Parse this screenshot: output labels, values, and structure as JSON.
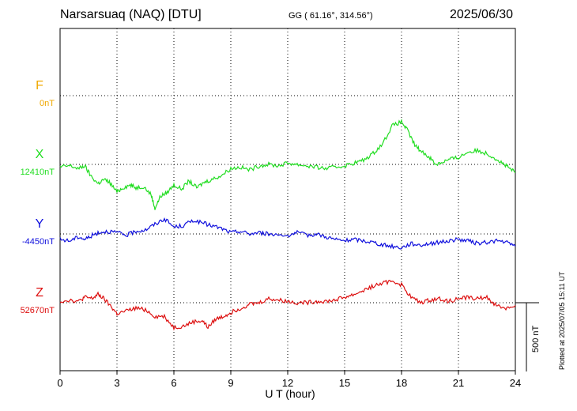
{
  "header": {
    "station": "Narsarsuaq (NAQ)  [DTU]",
    "coords": "GG ( 61.16°, 314.56°)",
    "date": "2025/06/30"
  },
  "side_note": "Plotted at 2025/07/05 15:11 UT",
  "scale_label": "500 nT",
  "chart_data": {
    "type": "line",
    "xlabel": "U T (hour)",
    "xlim": [
      0,
      24
    ],
    "x_ticks": [
      "0",
      "3",
      "6",
      "9",
      "12",
      "15",
      "18",
      "21",
      "24"
    ],
    "grid": true,
    "y_units": "nT",
    "scale_bar_nT": 500,
    "series": [
      {
        "name": "F",
        "baseline_label": "0nT",
        "color": "#f0a800",
        "points": []
      },
      {
        "name": "X",
        "baseline_label": "12410nT",
        "color": "#22dd22",
        "points": [
          [
            0,
            -20
          ],
          [
            0.5,
            -10
          ],
          [
            1,
            -30
          ],
          [
            1.3,
            -10
          ],
          [
            1.6,
            -80
          ],
          [
            2,
            -140
          ],
          [
            2.3,
            -110
          ],
          [
            2.6,
            -130
          ],
          [
            3,
            -200
          ],
          [
            3.3,
            -170
          ],
          [
            3.7,
            -150
          ],
          [
            4,
            -170
          ],
          [
            4.4,
            -160
          ],
          [
            4.8,
            -220
          ],
          [
            5,
            -320
          ],
          [
            5.3,
            -230
          ],
          [
            5.6,
            -210
          ],
          [
            6,
            -150
          ],
          [
            6.4,
            -180
          ],
          [
            6.8,
            -120
          ],
          [
            7.2,
            -170
          ],
          [
            7.6,
            -130
          ],
          [
            8,
            -110
          ],
          [
            8.5,
            -80
          ],
          [
            9,
            -30
          ],
          [
            9.5,
            -20
          ],
          [
            10,
            -40
          ],
          [
            10.5,
            -10
          ],
          [
            11,
            0
          ],
          [
            11.5,
            -10
          ],
          [
            12,
            10
          ],
          [
            12.5,
            0
          ],
          [
            13,
            -10
          ],
          [
            13.5,
            -20
          ],
          [
            14,
            -30
          ],
          [
            14.5,
            -20
          ],
          [
            15,
            -10
          ],
          [
            15.5,
            10
          ],
          [
            16,
            30
          ],
          [
            16.5,
            80
          ],
          [
            17,
            150
          ],
          [
            17.5,
            280
          ],
          [
            18,
            310
          ],
          [
            18.3,
            250
          ],
          [
            18.7,
            140
          ],
          [
            19,
            100
          ],
          [
            19.5,
            50
          ],
          [
            19.8,
            0
          ],
          [
            20.2,
            20
          ],
          [
            20.6,
            40
          ],
          [
            21,
            50
          ],
          [
            21.5,
            90
          ],
          [
            22,
            100
          ],
          [
            22.5,
            80
          ],
          [
            23,
            40
          ],
          [
            23.4,
            0
          ],
          [
            23.7,
            -30
          ],
          [
            24,
            -60
          ]
        ]
      },
      {
        "name": "Y",
        "baseline_label": "-4450nT",
        "color": "#1010dd",
        "points": [
          [
            0,
            -40
          ],
          [
            0.5,
            -50
          ],
          [
            1,
            -20
          ],
          [
            1.3,
            -40
          ],
          [
            1.7,
            -10
          ],
          [
            2,
            10
          ],
          [
            2.5,
            20
          ],
          [
            3,
            10
          ],
          [
            3.5,
            -10
          ],
          [
            4,
            20
          ],
          [
            4.5,
            30
          ],
          [
            5,
            70
          ],
          [
            5.5,
            110
          ],
          [
            6,
            50
          ],
          [
            6.5,
            60
          ],
          [
            7,
            100
          ],
          [
            7.5,
            80
          ],
          [
            8,
            60
          ],
          [
            8.5,
            40
          ],
          [
            9,
            10
          ],
          [
            9.5,
            20
          ],
          [
            10,
            0
          ],
          [
            10.5,
            10
          ],
          [
            11,
            0
          ],
          [
            12,
            -10
          ],
          [
            12.5,
            10
          ],
          [
            13,
            -10
          ],
          [
            13.5,
            0
          ],
          [
            14,
            -20
          ],
          [
            14.5,
            -40
          ],
          [
            15,
            -50
          ],
          [
            15.5,
            -40
          ],
          [
            16,
            -50
          ],
          [
            16.5,
            -60
          ],
          [
            17,
            -80
          ],
          [
            17.5,
            -90
          ],
          [
            18,
            -100
          ],
          [
            18.5,
            -70
          ],
          [
            19,
            -80
          ],
          [
            19.5,
            -70
          ],
          [
            20,
            -60
          ],
          [
            20.5,
            -50
          ],
          [
            21,
            -40
          ],
          [
            21.5,
            -50
          ],
          [
            22,
            -70
          ],
          [
            22.5,
            -60
          ],
          [
            23,
            -50
          ],
          [
            23.5,
            -60
          ],
          [
            24,
            -90
          ]
        ]
      },
      {
        "name": "Z",
        "baseline_label": "52670nT",
        "color": "#dd1010",
        "points": [
          [
            0,
            10
          ],
          [
            0.5,
            20
          ],
          [
            1,
            10
          ],
          [
            1.3,
            40
          ],
          [
            1.7,
            30
          ],
          [
            2,
            60
          ],
          [
            2.3,
            30
          ],
          [
            2.7,
            -30
          ],
          [
            3,
            -80
          ],
          [
            3.5,
            -60
          ],
          [
            4,
            -40
          ],
          [
            4.5,
            -50
          ],
          [
            5,
            -100
          ],
          [
            5.5,
            -100
          ],
          [
            6,
            -180
          ],
          [
            6.5,
            -170
          ],
          [
            7,
            -140
          ],
          [
            7.5,
            -130
          ],
          [
            7.8,
            -180
          ],
          [
            8.2,
            -120
          ],
          [
            8.6,
            -100
          ],
          [
            9,
            -70
          ],
          [
            9.5,
            -40
          ],
          [
            10,
            -10
          ],
          [
            10.5,
            0
          ],
          [
            11,
            30
          ],
          [
            11.5,
            20
          ],
          [
            12,
            10
          ],
          [
            12.5,
            0
          ],
          [
            13,
            0
          ],
          [
            13.5,
            10
          ],
          [
            14,
            10
          ],
          [
            14.5,
            20
          ],
          [
            15,
            40
          ],
          [
            15.5,
            60
          ],
          [
            16,
            90
          ],
          [
            16.5,
            120
          ],
          [
            17,
            140
          ],
          [
            17.5,
            160
          ],
          [
            18,
            130
          ],
          [
            18.5,
            40
          ],
          [
            19,
            0
          ],
          [
            19.5,
            20
          ],
          [
            20,
            30
          ],
          [
            20.5,
            10
          ],
          [
            21,
            30
          ],
          [
            21.5,
            40
          ],
          [
            22,
            30
          ],
          [
            22.5,
            40
          ],
          [
            23,
            -20
          ],
          [
            23.5,
            -40
          ],
          [
            24,
            -20
          ]
        ]
      }
    ]
  }
}
